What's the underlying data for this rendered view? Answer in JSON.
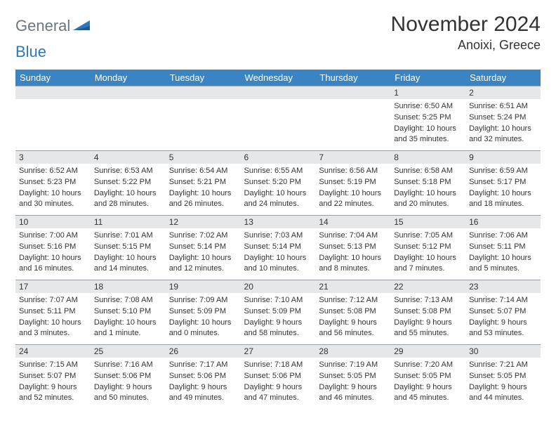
{
  "brand": {
    "part1": "General",
    "part2": "Blue"
  },
  "title": "November 2024",
  "location": "Anoixi, Greece",
  "colors": {
    "header_bg": "#3b84c4",
    "header_fg": "#ffffff",
    "daybar_bg": "#e5e7e9",
    "daybar_border": "#9aa0a6",
    "text": "#333333",
    "logo_gray": "#6b7680",
    "logo_blue": "#2f78b7"
  },
  "day_headers": [
    "Sunday",
    "Monday",
    "Tuesday",
    "Wednesday",
    "Thursday",
    "Friday",
    "Saturday"
  ],
  "weeks": [
    [
      {
        "n": "",
        "sr": "",
        "ss": "",
        "dl": ""
      },
      {
        "n": "",
        "sr": "",
        "ss": "",
        "dl": ""
      },
      {
        "n": "",
        "sr": "",
        "ss": "",
        "dl": ""
      },
      {
        "n": "",
        "sr": "",
        "ss": "",
        "dl": ""
      },
      {
        "n": "",
        "sr": "",
        "ss": "",
        "dl": ""
      },
      {
        "n": "1",
        "sr": "Sunrise: 6:50 AM",
        "ss": "Sunset: 5:25 PM",
        "dl": "Daylight: 10 hours and 35 minutes."
      },
      {
        "n": "2",
        "sr": "Sunrise: 6:51 AM",
        "ss": "Sunset: 5:24 PM",
        "dl": "Daylight: 10 hours and 32 minutes."
      }
    ],
    [
      {
        "n": "3",
        "sr": "Sunrise: 6:52 AM",
        "ss": "Sunset: 5:23 PM",
        "dl": "Daylight: 10 hours and 30 minutes."
      },
      {
        "n": "4",
        "sr": "Sunrise: 6:53 AM",
        "ss": "Sunset: 5:22 PM",
        "dl": "Daylight: 10 hours and 28 minutes."
      },
      {
        "n": "5",
        "sr": "Sunrise: 6:54 AM",
        "ss": "Sunset: 5:21 PM",
        "dl": "Daylight: 10 hours and 26 minutes."
      },
      {
        "n": "6",
        "sr": "Sunrise: 6:55 AM",
        "ss": "Sunset: 5:20 PM",
        "dl": "Daylight: 10 hours and 24 minutes."
      },
      {
        "n": "7",
        "sr": "Sunrise: 6:56 AM",
        "ss": "Sunset: 5:19 PM",
        "dl": "Daylight: 10 hours and 22 minutes."
      },
      {
        "n": "8",
        "sr": "Sunrise: 6:58 AM",
        "ss": "Sunset: 5:18 PM",
        "dl": "Daylight: 10 hours and 20 minutes."
      },
      {
        "n": "9",
        "sr": "Sunrise: 6:59 AM",
        "ss": "Sunset: 5:17 PM",
        "dl": "Daylight: 10 hours and 18 minutes."
      }
    ],
    [
      {
        "n": "10",
        "sr": "Sunrise: 7:00 AM",
        "ss": "Sunset: 5:16 PM",
        "dl": "Daylight: 10 hours and 16 minutes."
      },
      {
        "n": "11",
        "sr": "Sunrise: 7:01 AM",
        "ss": "Sunset: 5:15 PM",
        "dl": "Daylight: 10 hours and 14 minutes."
      },
      {
        "n": "12",
        "sr": "Sunrise: 7:02 AM",
        "ss": "Sunset: 5:14 PM",
        "dl": "Daylight: 10 hours and 12 minutes."
      },
      {
        "n": "13",
        "sr": "Sunrise: 7:03 AM",
        "ss": "Sunset: 5:14 PM",
        "dl": "Daylight: 10 hours and 10 minutes."
      },
      {
        "n": "14",
        "sr": "Sunrise: 7:04 AM",
        "ss": "Sunset: 5:13 PM",
        "dl": "Daylight: 10 hours and 8 minutes."
      },
      {
        "n": "15",
        "sr": "Sunrise: 7:05 AM",
        "ss": "Sunset: 5:12 PM",
        "dl": "Daylight: 10 hours and 7 minutes."
      },
      {
        "n": "16",
        "sr": "Sunrise: 7:06 AM",
        "ss": "Sunset: 5:11 PM",
        "dl": "Daylight: 10 hours and 5 minutes."
      }
    ],
    [
      {
        "n": "17",
        "sr": "Sunrise: 7:07 AM",
        "ss": "Sunset: 5:11 PM",
        "dl": "Daylight: 10 hours and 3 minutes."
      },
      {
        "n": "18",
        "sr": "Sunrise: 7:08 AM",
        "ss": "Sunset: 5:10 PM",
        "dl": "Daylight: 10 hours and 1 minute."
      },
      {
        "n": "19",
        "sr": "Sunrise: 7:09 AM",
        "ss": "Sunset: 5:09 PM",
        "dl": "Daylight: 10 hours and 0 minutes."
      },
      {
        "n": "20",
        "sr": "Sunrise: 7:10 AM",
        "ss": "Sunset: 5:09 PM",
        "dl": "Daylight: 9 hours and 58 minutes."
      },
      {
        "n": "21",
        "sr": "Sunrise: 7:12 AM",
        "ss": "Sunset: 5:08 PM",
        "dl": "Daylight: 9 hours and 56 minutes."
      },
      {
        "n": "22",
        "sr": "Sunrise: 7:13 AM",
        "ss": "Sunset: 5:08 PM",
        "dl": "Daylight: 9 hours and 55 minutes."
      },
      {
        "n": "23",
        "sr": "Sunrise: 7:14 AM",
        "ss": "Sunset: 5:07 PM",
        "dl": "Daylight: 9 hours and 53 minutes."
      }
    ],
    [
      {
        "n": "24",
        "sr": "Sunrise: 7:15 AM",
        "ss": "Sunset: 5:07 PM",
        "dl": "Daylight: 9 hours and 52 minutes."
      },
      {
        "n": "25",
        "sr": "Sunrise: 7:16 AM",
        "ss": "Sunset: 5:06 PM",
        "dl": "Daylight: 9 hours and 50 minutes."
      },
      {
        "n": "26",
        "sr": "Sunrise: 7:17 AM",
        "ss": "Sunset: 5:06 PM",
        "dl": "Daylight: 9 hours and 49 minutes."
      },
      {
        "n": "27",
        "sr": "Sunrise: 7:18 AM",
        "ss": "Sunset: 5:06 PM",
        "dl": "Daylight: 9 hours and 47 minutes."
      },
      {
        "n": "28",
        "sr": "Sunrise: 7:19 AM",
        "ss": "Sunset: 5:05 PM",
        "dl": "Daylight: 9 hours and 46 minutes."
      },
      {
        "n": "29",
        "sr": "Sunrise: 7:20 AM",
        "ss": "Sunset: 5:05 PM",
        "dl": "Daylight: 9 hours and 45 minutes."
      },
      {
        "n": "30",
        "sr": "Sunrise: 7:21 AM",
        "ss": "Sunset: 5:05 PM",
        "dl": "Daylight: 9 hours and 44 minutes."
      }
    ]
  ]
}
